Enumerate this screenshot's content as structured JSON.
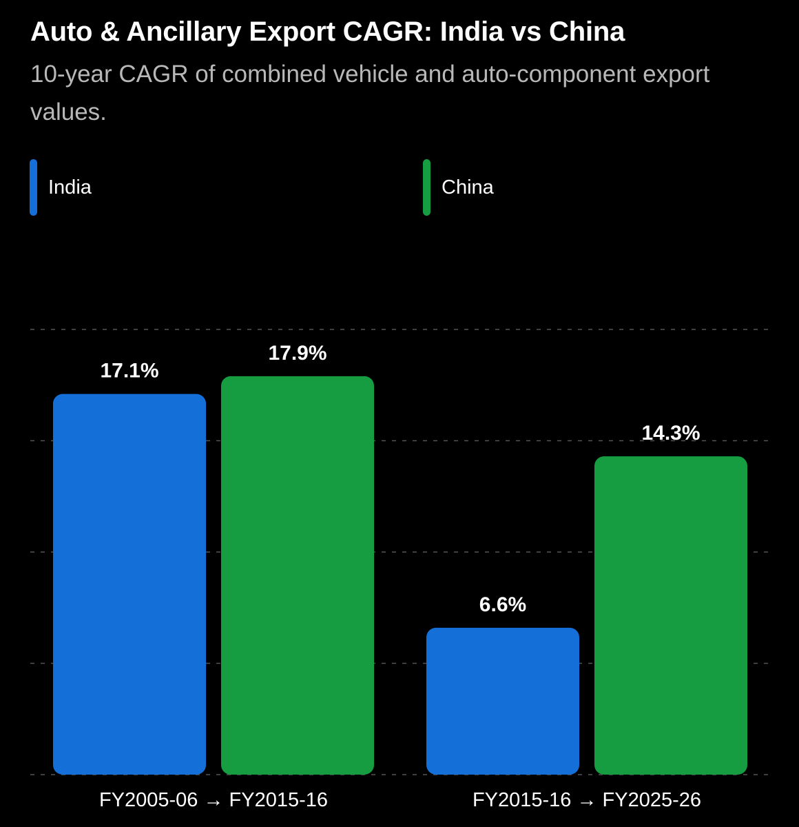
{
  "title": "Auto & Ancillary Export CAGR: India vs China",
  "subtitle": "10-year CAGR of combined vehicle and auto-component export values.",
  "colors": {
    "india": "#1470D8",
    "china": "#169C41",
    "background": "#000000",
    "grid": "#555555",
    "text": "#FFFFFF",
    "subtitle": "#B8B8B8"
  },
  "chart_data": {
    "type": "bar",
    "categories": [
      "FY2005-06 → FY2015-16",
      "FY2015-16 → FY2025-26"
    ],
    "series": [
      {
        "name": "India",
        "values": [
          17.1,
          6.6
        ],
        "labels": [
          "17.1%",
          "6.6%"
        ]
      },
      {
        "name": "China",
        "values": [
          17.9,
          14.3
        ],
        "labels": [
          "17.9%",
          "14.3%"
        ]
      }
    ],
    "ylim": [
      0,
      20
    ],
    "grid": true,
    "legend": "top-left"
  }
}
